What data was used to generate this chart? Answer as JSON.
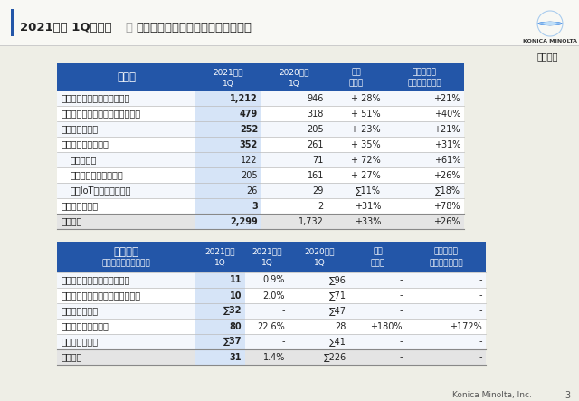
{
  "title_main": "2021年度 1Q　業績",
  "title_sub": "事業セグメント別売上高と営業利益",
  "unit_label": "【億円】",
  "footer": "Konica Minolta, Inc.",
  "page_num": "3",
  "blue": "#2356a8",
  "white": "#ffffff",
  "black": "#222222",
  "bg": "#eeede6",
  "light_blue_col": "#d6e4f7",
  "gray_line": "#bbbbbb",
  "table1": {
    "header_label": "売上高",
    "col_headers_top": [
      "2021年度",
      "2020年度",
      "前年",
      "為替影響を"
    ],
    "col_headers_bot": [
      "1Q",
      "1Q",
      "同期比",
      "除く前年同期比"
    ],
    "rows": [
      {
        "label": "デジタルワークプレイス事業",
        "bold": true,
        "indent": 0,
        "v1": "1,212",
        "v2": "946",
        "v3": "+ 28%",
        "v4": "+21%"
      },
      {
        "label": "プロフェッショナルプリント事業",
        "bold": true,
        "indent": 0,
        "v1": "479",
        "v2": "318",
        "v3": "+ 51%",
        "v4": "+40%"
      },
      {
        "label": "ヘルスケア事業",
        "bold": true,
        "indent": 0,
        "v1": "252",
        "v2": "205",
        "v3": "+ 23%",
        "v4": "+21%"
      },
      {
        "label": "インダストリー事業",
        "bold": true,
        "indent": 0,
        "v1": "352",
        "v2": "261",
        "v3": "+ 35%",
        "v4": "+31%"
      },
      {
        "label": "センシング",
        "bold": false,
        "indent": 1,
        "v1": "122",
        "v2": "71",
        "v3": "+ 72%",
        "v4": "+61%"
      },
      {
        "label": "材料・コンポーネント",
        "bold": false,
        "indent": 1,
        "v1": "205",
        "v2": "161",
        "v3": "+ 27%",
        "v4": "+26%"
      },
      {
        "label": "画像IoTソリューション",
        "bold": false,
        "indent": 1,
        "v1": "26",
        "v2": "29",
        "v3": "∑11%",
        "v4": "∑18%"
      },
      {
        "label": "コーポレート他",
        "bold": true,
        "indent": 0,
        "v1": "3",
        "v2": "2",
        "v3": "+31%",
        "v4": "+78%"
      },
      {
        "label": "全社合計",
        "bold": true,
        "indent": 0,
        "v1": "2,299",
        "v2": "1,732",
        "v3": "+33%",
        "v4": "+26%",
        "total": true
      }
    ]
  },
  "table2": {
    "header_line1": "営業利益",
    "header_line2": "（右側：営業利益率）",
    "col_headers_top": [
      "2021年度",
      "2021年度",
      "2020年度",
      "前年",
      "為替影響を"
    ],
    "col_headers_bot": [
      "1Q",
      "1Q",
      "1Q",
      "同期比",
      "除く前年同期比"
    ],
    "rows": [
      {
        "label": "デジタルワークプレイス事業",
        "bold": true,
        "v1": "11",
        "v2": "0.9%",
        "v3": "∑96",
        "v4": "-",
        "v5": "-"
      },
      {
        "label": "プロフェッショナルプリント事業",
        "bold": true,
        "v1": "10",
        "v2": "2.0%",
        "v3": "∑71",
        "v4": "-",
        "v5": "-"
      },
      {
        "label": "ヘルスケア事業",
        "bold": true,
        "v1": "∑32",
        "v2": "-",
        "v3": "∑47",
        "v4": "-",
        "v5": "-"
      },
      {
        "label": "インダストリー事業",
        "bold": true,
        "v1": "80",
        "v2": "22.6%",
        "v3": "28",
        "v4": "+180%",
        "v5": "+172%"
      },
      {
        "label": "コーポレート他",
        "bold": true,
        "v1": "∑37",
        "v2": "-",
        "v3": "∑41",
        "v4": "-",
        "v5": "-"
      },
      {
        "label": "全社合計",
        "bold": true,
        "v1": "31",
        "v2": "1.4%",
        "v3": "∑226",
        "v4": "-",
        "v5": "-",
        "total": true
      }
    ]
  }
}
